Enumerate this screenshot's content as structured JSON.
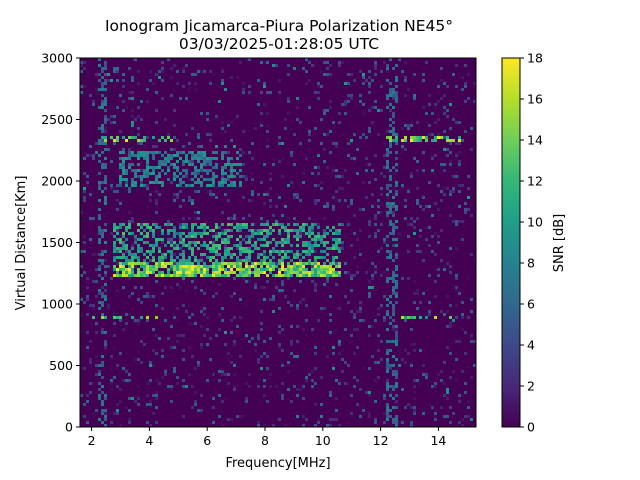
{
  "chart_data": {
    "type": "heatmap",
    "title": "Ionogram Jicamarca-Piura Polarization NE45°",
    "subtitle": "03/03/2025-01:28:05 UTC",
    "xlabel": "Frequency[MHz]",
    "ylabel": "Virtual Distance[Km]",
    "xlim": [
      1.6,
      15.3
    ],
    "ylim": [
      0,
      3000
    ],
    "xticks": [
      2,
      4,
      6,
      8,
      10,
      12,
      14
    ],
    "yticks": [
      0,
      500,
      1000,
      1500,
      2000,
      2500,
      3000
    ],
    "colorbar": {
      "label": "SNR [dB]",
      "range": [
        0,
        18
      ],
      "ticks": [
        0,
        2,
        4,
        6,
        8,
        10,
        12,
        14,
        16,
        18
      ],
      "colormap": "viridis"
    },
    "features": [
      {
        "description": "strong echo trace",
        "x_range_mhz": [
          2.7,
          10.6
        ],
        "virtual_distance_km": [
          1220,
          1330
        ],
        "snr_db": 18
      },
      {
        "description": "diffuse echo band",
        "x_range_mhz": [
          2.7,
          10.6
        ],
        "virtual_distance_km": [
          1330,
          1650
        ],
        "snr_db": 13
      },
      {
        "description": "second-hop echo",
        "x_range_mhz": [
          3.0,
          7.2
        ],
        "virtual_distance_km": [
          1950,
          2250
        ],
        "snr_db": 10
      },
      {
        "description": "horizontal interference line",
        "x_range_mhz": [
          2.3,
          4.8
        ],
        "virtual_distance_km": [
          2340,
          2340
        ],
        "snr_db": 18
      },
      {
        "description": "horizontal interference line",
        "x_range_mhz": [
          12.2,
          14.8
        ],
        "virtual_distance_km": [
          2340,
          2340
        ],
        "snr_db": 18
      },
      {
        "description": "horizontal interference line",
        "x_range_mhz": [
          1.9,
          4.3
        ],
        "virtual_distance_km": [
          880,
          880
        ],
        "snr_db": 16
      },
      {
        "description": "horizontal interference line",
        "x_range_mhz": [
          12.6,
          14.5
        ],
        "virtual_distance_km": [
          880,
          880
        ],
        "snr_db": 16
      },
      {
        "description": "vertical interference column",
        "x_range_mhz": [
          2.2,
          2.5
        ],
        "virtual_distance_km": [
          0,
          3000
        ],
        "snr_db": 8
      },
      {
        "description": "vertical interference column",
        "x_range_mhz": [
          12.2,
          12.6
        ],
        "virtual_distance_km": [
          0,
          3000
        ],
        "snr_db": 8
      }
    ],
    "colors": {
      "background_low": "#440154",
      "mid": "#21918c",
      "high": "#fde725"
    }
  }
}
